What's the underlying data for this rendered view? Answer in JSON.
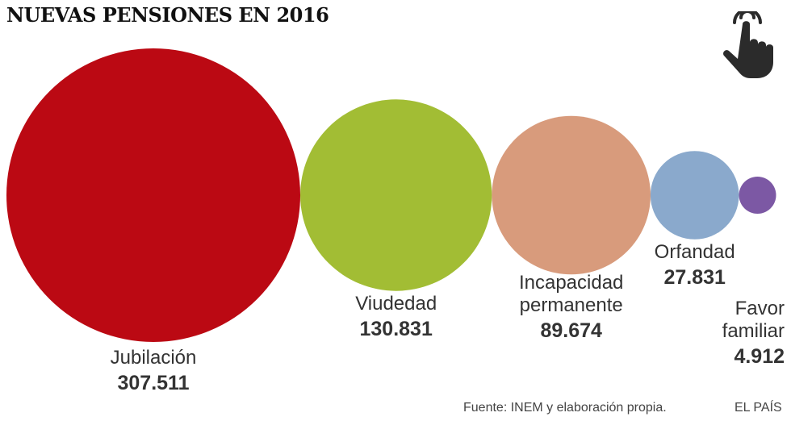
{
  "title": "NUEVAS PENSIONES EN 2016",
  "touch_icon": "pointing-hand-icon",
  "source": "Fuente: INEM y elaboración propia.",
  "brand": "EL PAÍS",
  "chart_data": {
    "type": "bubble",
    "title": "NUEVAS PENSIONES EN 2016",
    "series": [
      {
        "name": [
          "Jubilación"
        ],
        "value": 307511,
        "display": "307.511",
        "color": "#bb0913"
      },
      {
        "name": [
          "Viudedad"
        ],
        "value": 130831,
        "display": "130.831",
        "color": "#a2bd34"
      },
      {
        "name": [
          "Incapacidad",
          "permanente"
        ],
        "value": 89674,
        "display": "89.674",
        "color": "#d89b7c"
      },
      {
        "name": [
          "Orfandad"
        ],
        "value": 27831,
        "display": "27.831",
        "color": "#8aa9cc"
      },
      {
        "name": [
          "Favor",
          "familiar"
        ],
        "value": 4912,
        "display": "4.912",
        "color": "#7c58a4"
      }
    ]
  }
}
